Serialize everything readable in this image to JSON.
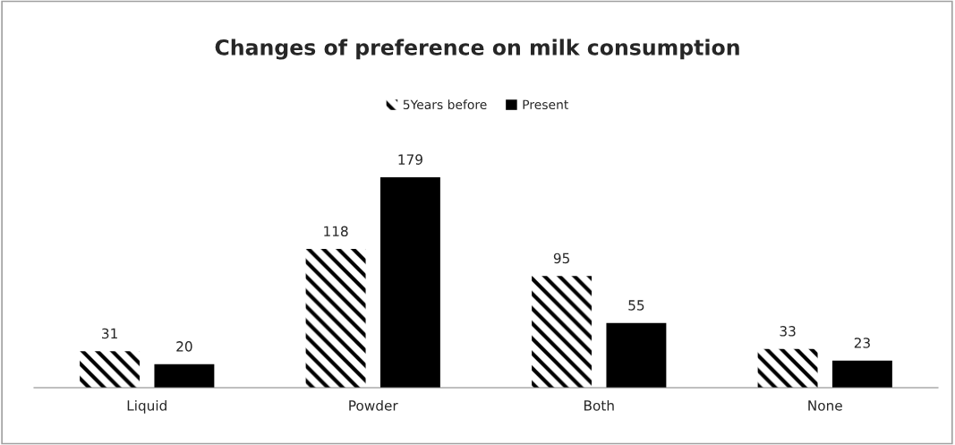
{
  "chart_data": {
    "type": "bar",
    "title": "Changes of preference on milk consumption",
    "categories": [
      "Liquid",
      "Powder",
      "Both",
      "None"
    ],
    "series": [
      {
        "name": "5Years before",
        "color": "#000000",
        "values": [
          31,
          118,
          95,
          33
        ]
      },
      {
        "name": "Present",
        "color": "#000000",
        "values": [
          20,
          179,
          55,
          23
        ]
      }
    ],
    "data_labels": true,
    "legend": "top",
    "grid": false
  }
}
